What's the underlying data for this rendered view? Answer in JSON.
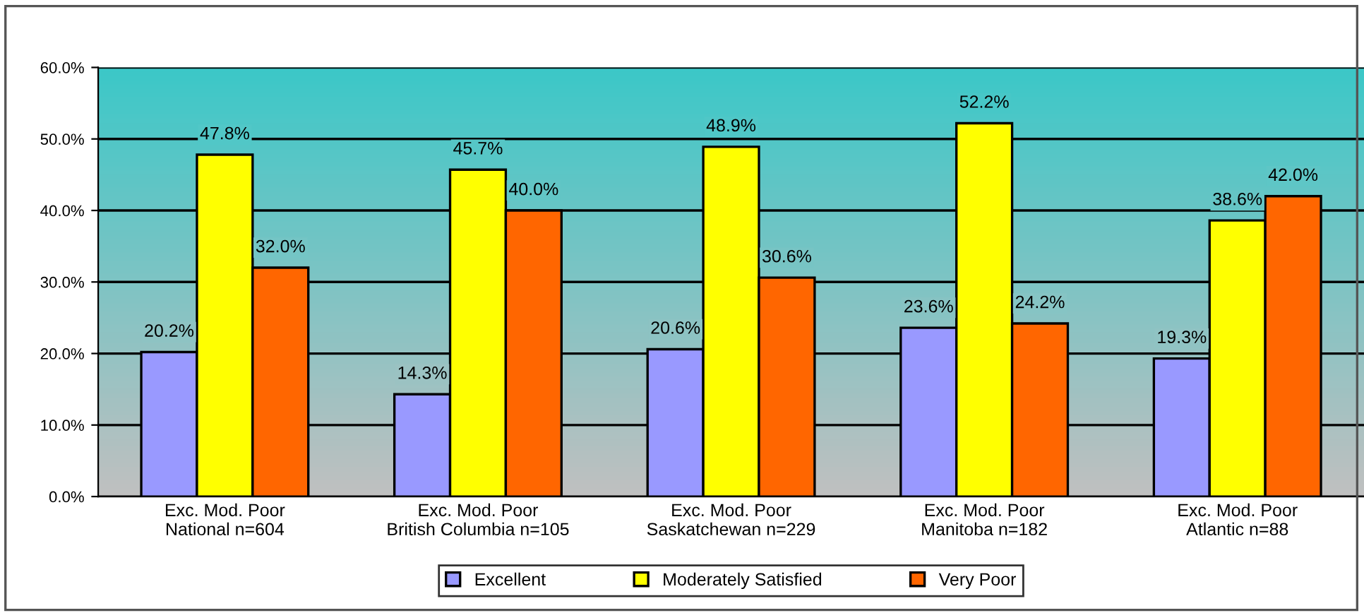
{
  "chart_data": {
    "type": "bar",
    "categories": [
      "Exc. Mod. Poor\nNational n=604",
      "Exc. Mod. Poor\nBritish Columbia n=105",
      "Exc. Mod. Poor\nSaskatchewan n=229",
      "Exc. Mod. Poor\nManitoba n=182",
      "Exc. Mod. Poor\nAtlantic n=88"
    ],
    "series": [
      {
        "name": "Excellent",
        "color": "#9999ff",
        "values": [
          20.2,
          14.3,
          20.6,
          23.6,
          19.3
        ],
        "value_labels": [
          "20.2%",
          "14.3%",
          "20.6%",
          "23.6%",
          "19.3%"
        ]
      },
      {
        "name": "Moderately Satisfied",
        "color": "#ffff00",
        "values": [
          47.8,
          45.7,
          48.9,
          52.2,
          38.6
        ],
        "value_labels": [
          "47.8%",
          "45.7%",
          "48.9%",
          "52.2%",
          "38.6%"
        ]
      },
      {
        "name": "Very Poor",
        "color": "#ff6600",
        "values": [
          32.0,
          40.0,
          30.6,
          24.2,
          42.0
        ],
        "value_labels": [
          "32.0%",
          "40.0%",
          "30.6%",
          "24.2%",
          "42.0%"
        ]
      }
    ],
    "ylim": [
      0,
      60
    ],
    "yticks": [
      {
        "value": 0,
        "label": "0.0%"
      },
      {
        "value": 10,
        "label": "10.0%"
      },
      {
        "value": 20,
        "label": "20.0%"
      },
      {
        "value": 30,
        "label": "30.0%"
      },
      {
        "value": 40,
        "label": "40.0%"
      },
      {
        "value": 50,
        "label": "50.0%"
      },
      {
        "value": 60,
        "label": "60.0%"
      }
    ],
    "grid": "y",
    "legend": "bottom"
  }
}
